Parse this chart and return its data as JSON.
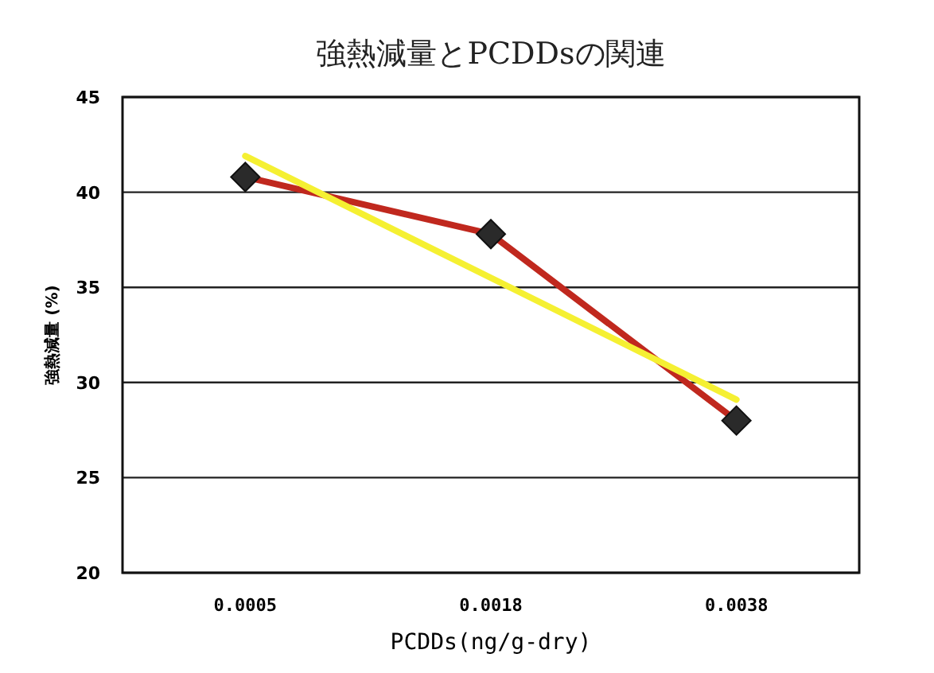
{
  "chart_data": {
    "type": "line",
    "title": "強熱減量とPCDDsの関連",
    "xlabel": "PCDDs(ng/g-dry)",
    "ylabel": "強熱減量 (%)",
    "categories": [
      "0.0005",
      "0.0018",
      "0.0038"
    ],
    "series": [
      {
        "color": "#c0281e",
        "values": [
          40.8,
          37.8,
          28.0
        ],
        "marker": "diamond"
      },
      {
        "color": "#f5f032",
        "values": [
          41.9,
          35.5,
          29.1
        ],
        "marker": "none"
      }
    ],
    "ylim": [
      20,
      45
    ],
    "yticks": [
      20,
      25,
      30,
      35,
      40,
      45
    ],
    "grid": "y"
  }
}
